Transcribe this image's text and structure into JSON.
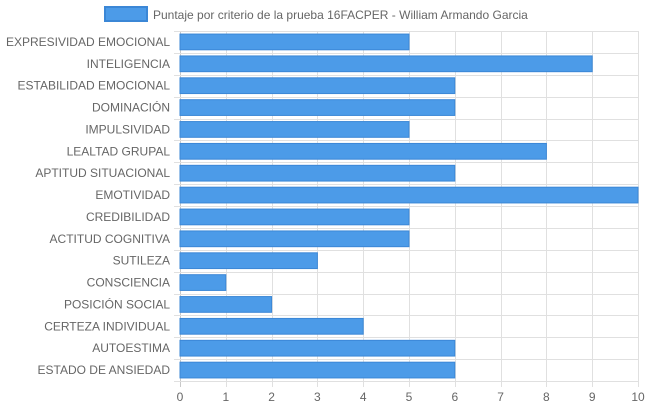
{
  "chart_data": {
    "type": "bar",
    "orientation": "horizontal",
    "categories": [
      "EXPRESIVIDAD EMOCIONAL",
      "INTELIGENCIA",
      "ESTABILIDAD EMOCIONAL",
      "DOMINACIÓN",
      "IMPULSIVIDAD",
      "LEALTAD GRUPAL",
      "APTITUD SITUACIONAL",
      "EMOTIVIDAD",
      "CREDIBILIDAD",
      "ACTITUD COGNITIVA",
      "SUTILEZA",
      "CONSCIENCIA",
      "POSICIÓN SOCIAL",
      "CERTEZA INDIVIDUAL",
      "AUTOESTIMA",
      "ESTADO DE ANSIEDAD"
    ],
    "series": [
      {
        "name": "Puntaje por criterio de la prueba 16FACPER - William Armando Garcia",
        "values": [
          5,
          9,
          6,
          6,
          5,
          8,
          6,
          10,
          5,
          5,
          3,
          1,
          2,
          4,
          6,
          6
        ]
      }
    ],
    "xlim": [
      0,
      10
    ],
    "x_ticks": [
      "0",
      "1",
      "2",
      "3",
      "4",
      "5",
      "6",
      "7",
      "8",
      "9",
      "10"
    ],
    "grid": true,
    "legend_position": "top",
    "colors": {
      "bar_fill": "#4c9be8",
      "bar_border": "#3b87d6",
      "grid": "#e0e0e0",
      "axis_text": "#666666"
    }
  }
}
